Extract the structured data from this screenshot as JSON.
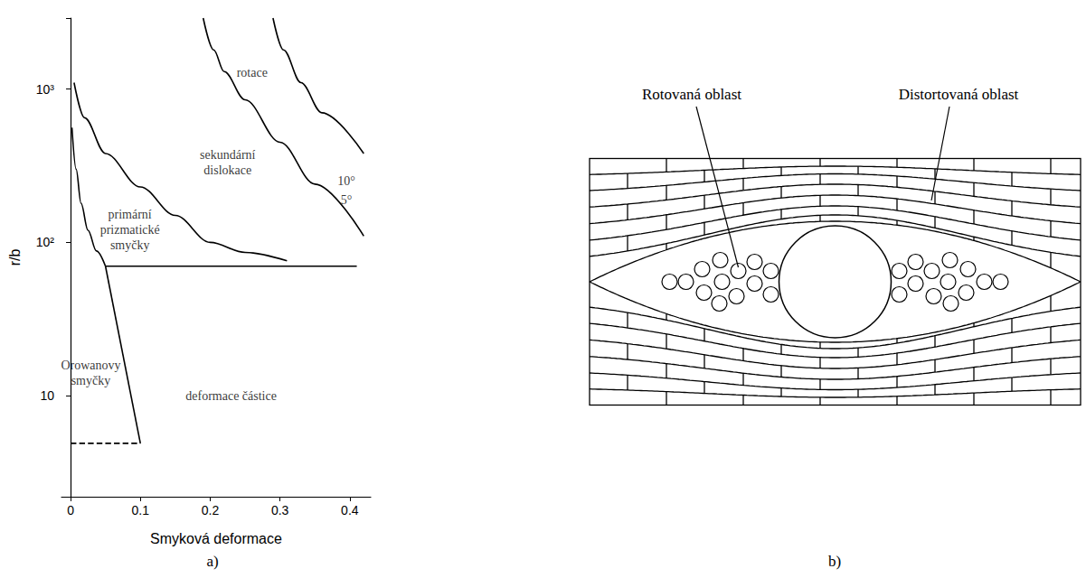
{
  "chart_data": {
    "type": "line",
    "panel_label": "a)",
    "x_label": "Smyková deformace",
    "y_label": "r/b",
    "xlim": [
      -0.013,
      0.43
    ],
    "xticks": [
      0,
      0.1,
      0.2,
      0.3,
      0.4
    ],
    "ylim": [
      2.2,
      2900
    ],
    "yticks": [
      10,
      {
        "value": 100,
        "label": "10²"
      },
      {
        "value": 1000,
        "label": "10³"
      }
    ],
    "log": "y",
    "grid": false,
    "series": [
      {
        "color": "#000000",
        "line_style": "solid",
        "x": [
          0.002,
          0.008,
          0.015,
          0.025,
          0.037,
          0.05
        ],
        "values": [
          560,
          300,
          180,
          120,
          88,
          70
        ]
      },
      {
        "color": "#000000",
        "line_style": "solid",
        "x": [
          0.05,
          0.1
        ],
        "values": [
          70,
          4.9
        ]
      },
      {
        "color": "#000000",
        "line_style": "dashed",
        "x": [
          0,
          0.1
        ],
        "values": [
          4.9,
          4.9
        ]
      },
      {
        "color": "#000000",
        "line_style": "solid",
        "x": [
          0.05,
          0.41
        ],
        "values": [
          70,
          70
        ]
      },
      {
        "color": "#000000",
        "line_style": "solid",
        "x": [
          0.005,
          0.02,
          0.05,
          0.1,
          0.15,
          0.2,
          0.25,
          0.31
        ],
        "values": [
          1100,
          650,
          380,
          230,
          150,
          100,
          86,
          76
        ]
      },
      {
        "color": "#000000",
        "line_style": "solid",
        "x": [
          0.19,
          0.205,
          0.22,
          0.25,
          0.3,
          0.35,
          0.42
        ],
        "values": [
          2900,
          1800,
          1300,
          850,
          450,
          240,
          110
        ]
      },
      {
        "color": "#000000",
        "line_style": "solid",
        "x": [
          0.29,
          0.305,
          0.33,
          0.36,
          0.42
        ],
        "values": [
          2900,
          1800,
          1100,
          700,
          380
        ]
      }
    ],
    "annotations": [
      {
        "text": [
          "rotace"
        ],
        "x": 0.26,
        "y": 1270
      },
      {
        "text": [
          "sekundární",
          "dislokace"
        ],
        "x": 0.225,
        "y": 330
      },
      {
        "text": [
          "primární",
          "prizmatické",
          "smyčky"
        ],
        "x": 0.085,
        "y": 120
      },
      {
        "text": [
          "Orowanovy",
          "smyčky"
        ],
        "x": 0.029,
        "y": 14
      },
      {
        "text": [
          "deformace částice"
        ],
        "x": 0.23,
        "y": 10
      },
      {
        "text": [
          "10°"
        ],
        "x": 0.395,
        "y": 250
      },
      {
        "text": [
          "5°"
        ],
        "x": 0.395,
        "y": 190
      }
    ]
  },
  "diagram": {
    "panel_label": "b)",
    "labels": [
      "Rotovaná oblast",
      "Distortovaná oblast"
    ]
  }
}
